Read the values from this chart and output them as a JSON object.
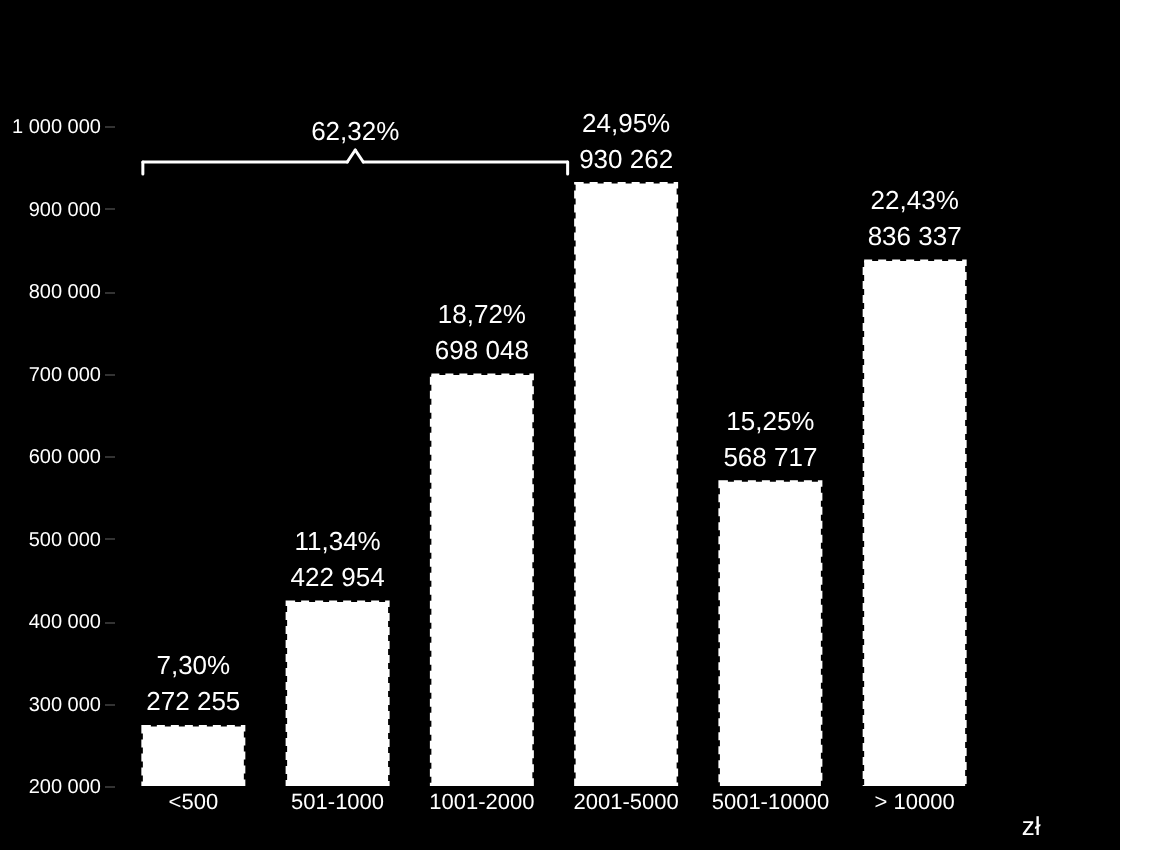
{
  "chart_data": {
    "type": "bar",
    "categories": [
      "<500",
      "501-1000",
      "1001-2000",
      "2001-5000",
      "5001-10000",
      "> 10000"
    ],
    "values": [
      272255,
      422954,
      698048,
      930262,
      568717,
      836337
    ],
    "color": "#ffffff",
    "value_labels": [
      "7,30%\n272 255",
      "11,34%\n422 954",
      "18,72%\n698 048",
      "24,95%\n930 262",
      "15,25%\n568 717",
      "22,43%\n836 337"
    ],
    "xlabel": "zł",
    "annotations": [
      "62,32%"
    ],
    "ylim": [
      200000,
      1000000
    ],
    "yticks": [
      {
        "value": 200000,
        "label": "200 000"
      },
      {
        "value": 300000,
        "label": "300 000"
      },
      {
        "value": 400000,
        "label": "400 000"
      },
      {
        "value": 500000,
        "label": "500 000"
      },
      {
        "value": 600000,
        "label": "600 000"
      },
      {
        "value": 700000,
        "label": "700 000"
      },
      {
        "value": 800000,
        "label": "800 000"
      },
      {
        "value": 900000,
        "label": "900 000"
      },
      {
        "value": 1000000,
        "label": "1 000 000"
      }
    ],
    "grid": false
  }
}
